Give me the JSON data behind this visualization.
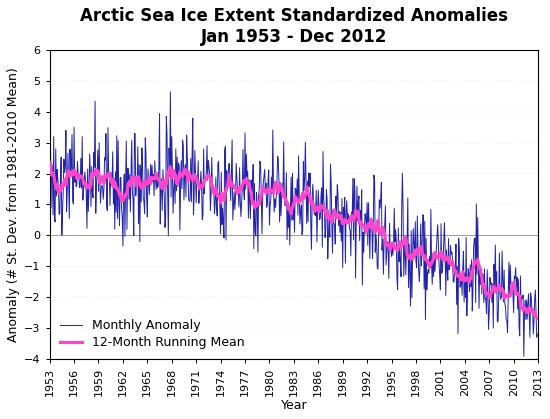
{
  "title_line1": "Arctic Sea Ice Extent Standardized Anomalies",
  "title_line2": "Jan 1953 - Dec 2012",
  "xlabel": "Year",
  "ylabel": "Anomaly (# St. Dev. from 1981-2010 Mean)",
  "ylim": [
    -4,
    6
  ],
  "yticks": [
    -4,
    -3,
    -2,
    -1,
    0,
    1,
    2,
    3,
    4,
    5,
    6
  ],
  "x_start_year": 1953,
  "x_end_year": 2013,
  "xtick_years": [
    1953,
    1956,
    1959,
    1962,
    1965,
    1968,
    1971,
    1974,
    1977,
    1980,
    1983,
    1986,
    1989,
    1992,
    1995,
    1998,
    2001,
    2004,
    2007,
    2010,
    2013
  ],
  "monthly_color": "#2222aa",
  "running_mean_color": "#ff44cc",
  "monthly_linewidth": 0.7,
  "running_mean_linewidth": 2.2,
  "legend_monthly": "Monthly Anomaly",
  "legend_running_mean": "12-Month Running Mean",
  "background_color": "#ffffff",
  "title_fontsize": 12,
  "axis_label_fontsize": 9,
  "tick_label_fontsize": 8,
  "legend_fontsize": 9,
  "grid_color": "#bbbbbb"
}
